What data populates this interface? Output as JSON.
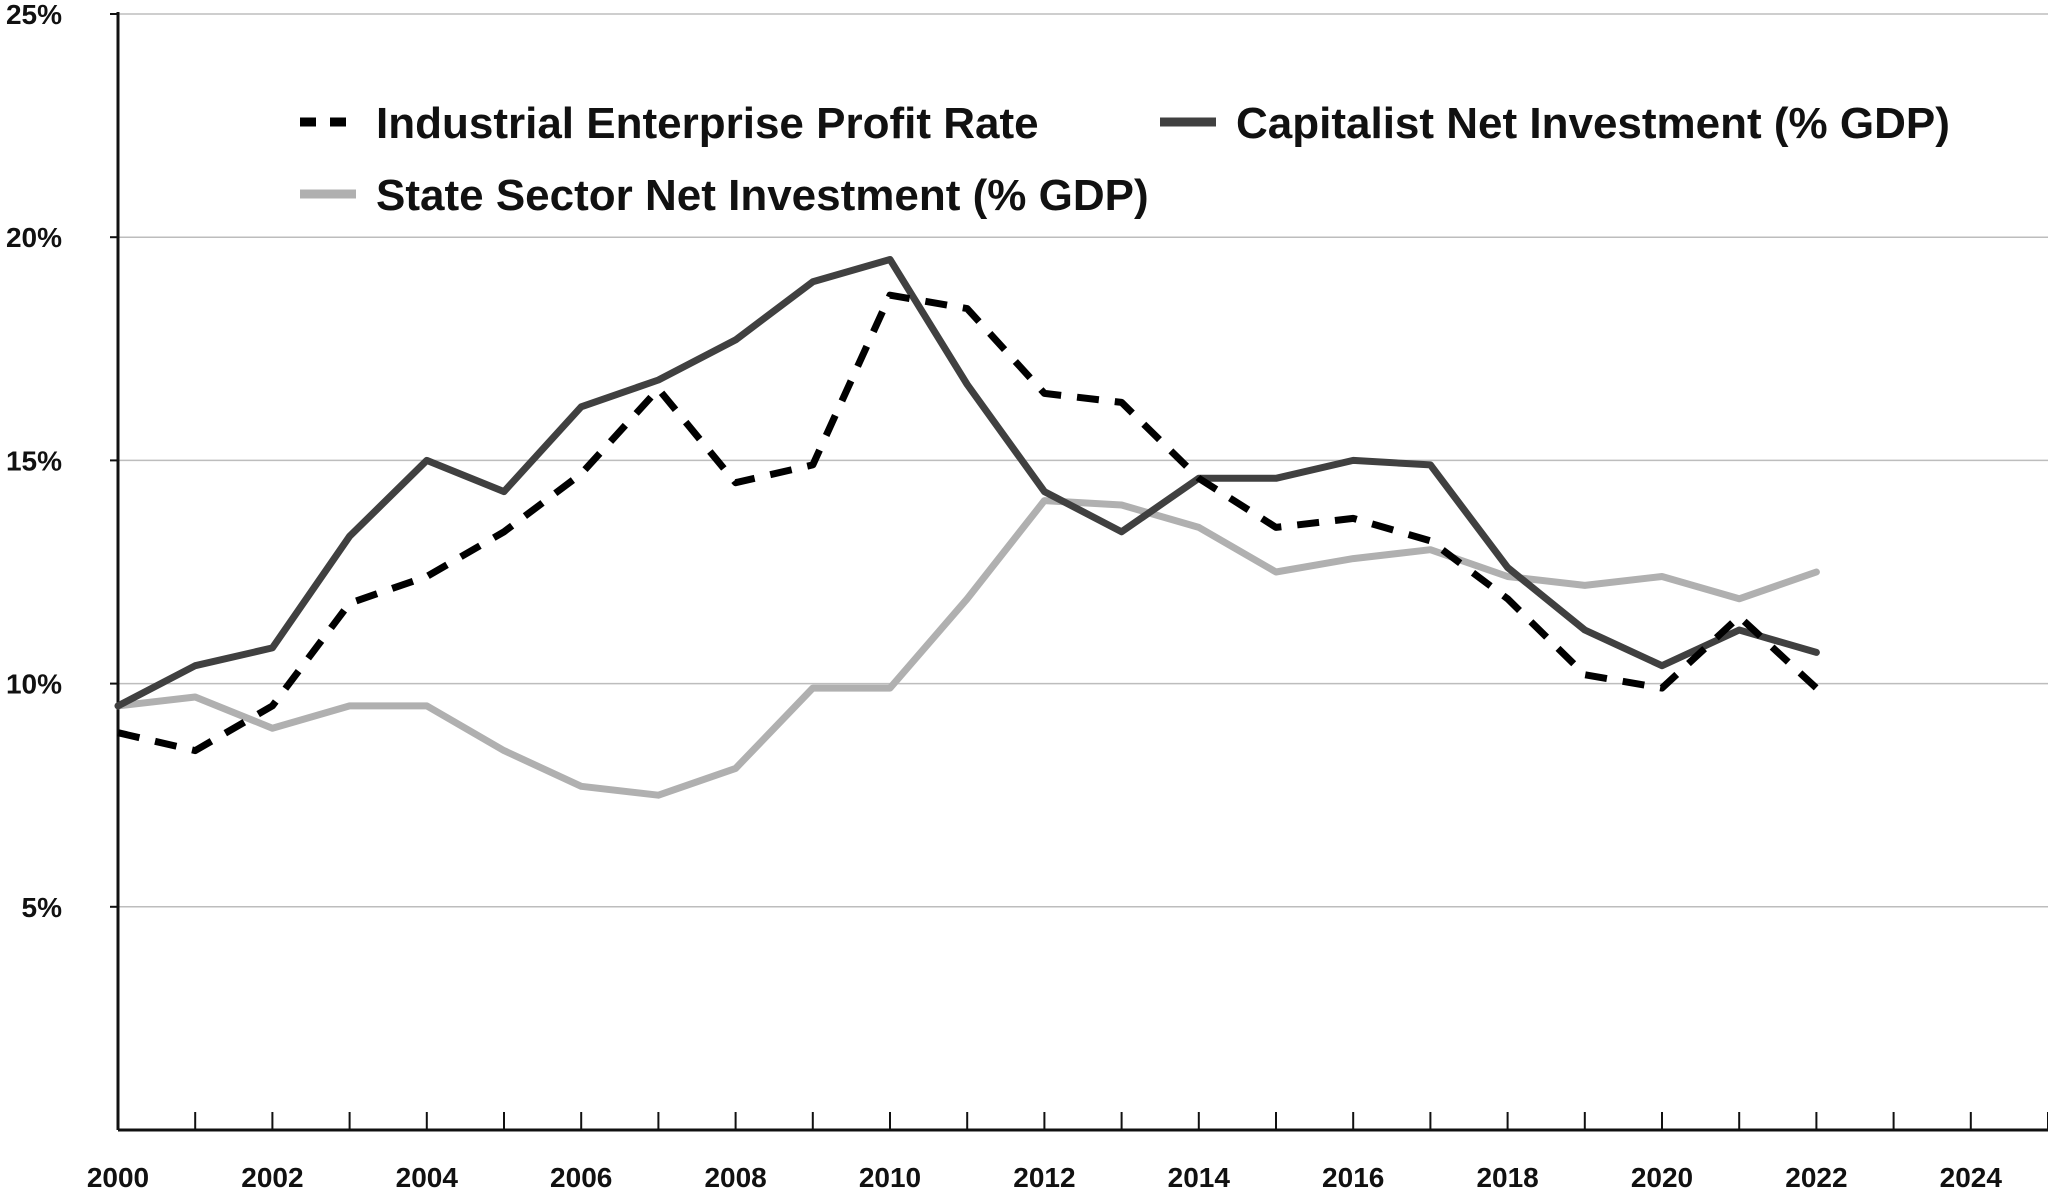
{
  "chart_data": {
    "type": "line",
    "title": "",
    "xlabel": "",
    "ylabel": "",
    "xlim": [
      2000,
      2025
    ],
    "ylim": [
      0,
      25
    ],
    "x_ticks": [
      2000,
      2002,
      2004,
      2006,
      2008,
      2010,
      2012,
      2014,
      2016,
      2018,
      2020,
      2022,
      2024
    ],
    "x_tick_labels": [
      "2000",
      "2002",
      "2004",
      "2006",
      "2008",
      "2010",
      "2012",
      "2014",
      "2016",
      "2018",
      "2020",
      "2022",
      "2024"
    ],
    "y_ticks": [
      5,
      10,
      15,
      20,
      25
    ],
    "y_tick_labels": [
      "5%",
      "10%",
      "15%",
      "20%",
      "25%"
    ],
    "grid": "horizontal",
    "legend_position": "top-left",
    "x": [
      2000,
      2001,
      2002,
      2003,
      2004,
      2005,
      2006,
      2007,
      2008,
      2009,
      2010,
      2011,
      2012,
      2013,
      2014,
      2015,
      2016,
      2017,
      2018,
      2019,
      2020,
      2021,
      2022
    ],
    "series": [
      {
        "name": "Industrial Enterprise Profit Rate",
        "color": "#000000",
        "style": "dashed",
        "values": [
          8.9,
          8.5,
          9.5,
          11.8,
          12.4,
          13.4,
          14.7,
          16.6,
          14.5,
          14.9,
          18.7,
          18.4,
          16.5,
          16.3,
          14.6,
          13.5,
          13.7,
          13.2,
          11.9,
          10.2,
          9.9,
          11.5,
          9.9
        ]
      },
      {
        "name": "Capitalist Net Investment (% GDP)",
        "color": "#404040",
        "style": "solid",
        "values": [
          9.5,
          10.4,
          10.8,
          13.3,
          15.0,
          14.3,
          16.2,
          16.8,
          17.7,
          19.0,
          19.5,
          16.7,
          14.3,
          13.4,
          14.6,
          14.6,
          15.0,
          14.9,
          12.6,
          11.2,
          10.4,
          11.2,
          10.7
        ]
      },
      {
        "name": "State Sector Net Investment (% GDP)",
        "color": "#b0b0b0",
        "style": "solid",
        "values": [
          9.5,
          9.7,
          9.0,
          9.5,
          9.5,
          8.5,
          7.7,
          7.5,
          8.1,
          9.9,
          9.9,
          11.9,
          14.1,
          14.0,
          13.5,
          12.5,
          12.8,
          13.0,
          12.4,
          12.2,
          12.4,
          11.9,
          12.5
        ]
      }
    ]
  }
}
